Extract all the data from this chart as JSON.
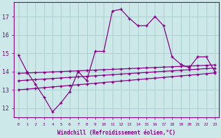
{
  "x": [
    0,
    1,
    2,
    3,
    4,
    5,
    6,
    7,
    8,
    9,
    10,
    11,
    12,
    13,
    14,
    15,
    16,
    17,
    18,
    19,
    20,
    21,
    22,
    23
  ],
  "main_line": [
    14.9,
    14.0,
    13.3,
    12.6,
    11.8,
    12.3,
    12.9,
    14.0,
    13.5,
    15.1,
    15.1,
    17.3,
    17.4,
    16.9,
    16.5,
    16.5,
    17.0,
    16.5,
    14.8,
    14.4,
    14.2,
    14.8,
    14.8,
    14.0
  ],
  "upper_slope": [
    13.9,
    13.92,
    13.94,
    13.96,
    13.98,
    14.0,
    14.02,
    14.04,
    14.06,
    14.08,
    14.1,
    14.12,
    14.14,
    14.16,
    14.18,
    14.2,
    14.22,
    14.24,
    14.26,
    14.28,
    14.3,
    14.32,
    14.34,
    14.36
  ],
  "mid_slope": [
    13.5,
    13.53,
    13.56,
    13.59,
    13.62,
    13.65,
    13.68,
    13.71,
    13.74,
    13.77,
    13.8,
    13.83,
    13.86,
    13.89,
    13.92,
    13.95,
    13.98,
    14.01,
    14.04,
    14.07,
    14.1,
    14.13,
    14.16,
    14.19
  ],
  "lower_slope": [
    13.0,
    13.04,
    13.08,
    13.12,
    13.16,
    13.2,
    13.24,
    13.28,
    13.32,
    13.36,
    13.4,
    13.44,
    13.48,
    13.52,
    13.56,
    13.6,
    13.64,
    13.68,
    13.72,
    13.76,
    13.8,
    13.84,
    13.88,
    13.92
  ],
  "line_color": "#880088",
  "bg_color": "#cce8e8",
  "grid_color": "#aacccc",
  "xlabel": "Windchill (Refroidissement éolien,°C)",
  "ylabel_ticks": [
    12,
    13,
    14,
    15,
    16,
    17
  ],
  "ylim": [
    11.5,
    17.8
  ],
  "xlim": [
    -0.5,
    23.5
  ],
  "xticks": [
    0,
    1,
    2,
    3,
    4,
    5,
    6,
    7,
    8,
    9,
    10,
    11,
    12,
    13,
    14,
    15,
    16,
    17,
    18,
    19,
    20,
    21,
    22,
    23
  ]
}
